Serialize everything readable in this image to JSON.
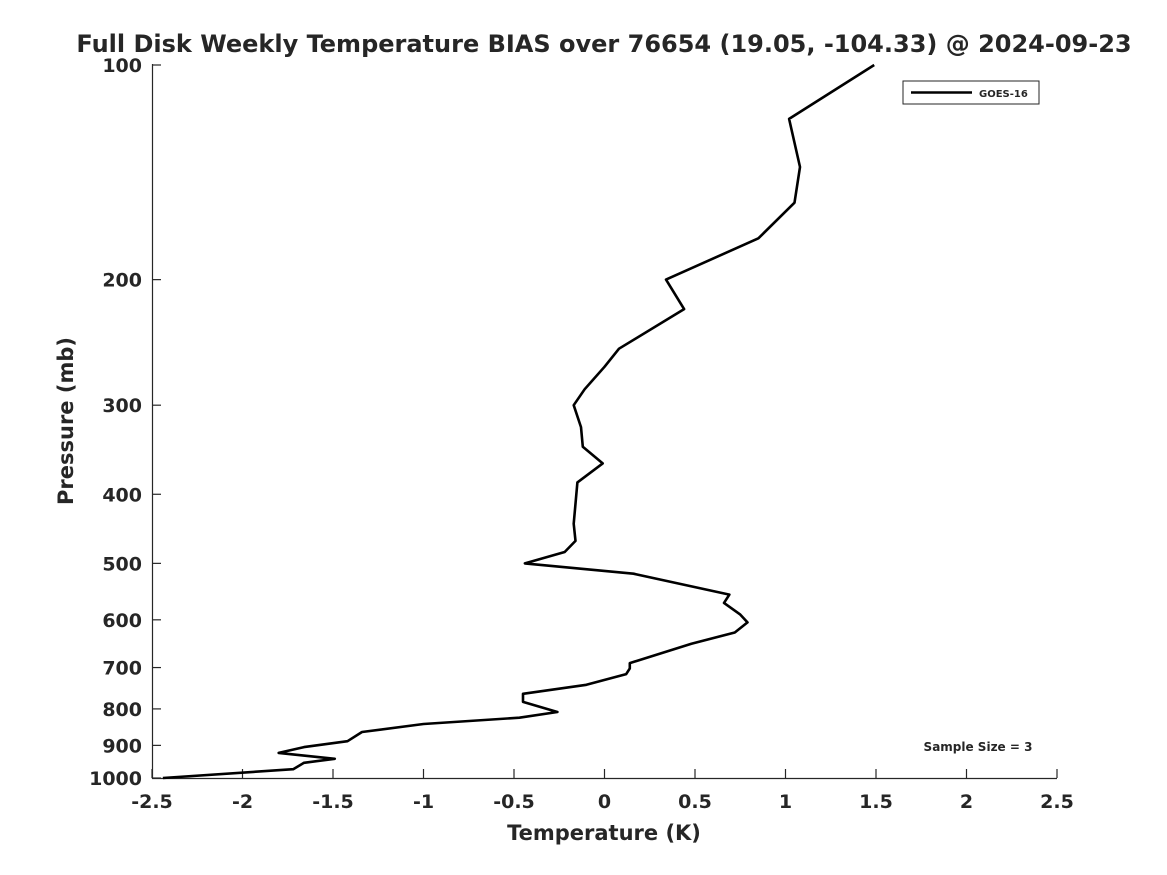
{
  "chart_data": {
    "type": "line",
    "title": "Full Disk Weekly Temperature BIAS over 76654 (19.05, -104.33) @ 2024-09-23",
    "xlabel": "Temperature (K)",
    "ylabel": "Pressure (mb)",
    "xlim": [
      -2.5,
      2.5
    ],
    "ylim": [
      100,
      1000
    ],
    "y_scale": "log",
    "y_reversed": true,
    "x_ticks": [
      "-2.5",
      "-2",
      "-1.5",
      "-1",
      "-0.5",
      "0",
      "0.5",
      "1",
      "1.5",
      "2",
      "2.5"
    ],
    "y_ticks": [
      "100",
      "200",
      "300",
      "400",
      "500",
      "600",
      "700",
      "800",
      "900",
      "1000"
    ],
    "grid": false,
    "legend_position": "top-right",
    "annotation": "Sample Size = 3",
    "series": [
      {
        "name": "GOES-16",
        "color": "#000000",
        "points": [
          {
            "x": 1.49,
            "y": 100
          },
          {
            "x": 1.02,
            "y": 119
          },
          {
            "x": 1.08,
            "y": 139
          },
          {
            "x": 1.05,
            "y": 156
          },
          {
            "x": 0.85,
            "y": 175
          },
          {
            "x": 0.34,
            "y": 200
          },
          {
            "x": 0.44,
            "y": 220
          },
          {
            "x": 0.08,
            "y": 250
          },
          {
            "x": 0.0,
            "y": 265
          },
          {
            "x": -0.11,
            "y": 285
          },
          {
            "x": -0.17,
            "y": 300
          },
          {
            "x": -0.13,
            "y": 322
          },
          {
            "x": -0.12,
            "y": 343
          },
          {
            "x": -0.01,
            "y": 362
          },
          {
            "x": -0.15,
            "y": 385
          },
          {
            "x": -0.17,
            "y": 440
          },
          {
            "x": -0.16,
            "y": 465
          },
          {
            "x": -0.22,
            "y": 482
          },
          {
            "x": -0.44,
            "y": 500
          },
          {
            "x": 0.16,
            "y": 517
          },
          {
            "x": 0.69,
            "y": 553
          },
          {
            "x": 0.66,
            "y": 568
          },
          {
            "x": 0.75,
            "y": 590
          },
          {
            "x": 0.79,
            "y": 605
          },
          {
            "x": 0.72,
            "y": 625
          },
          {
            "x": 0.48,
            "y": 648
          },
          {
            "x": 0.14,
            "y": 690
          },
          {
            "x": 0.14,
            "y": 702
          },
          {
            "x": 0.12,
            "y": 715
          },
          {
            "x": -0.1,
            "y": 740
          },
          {
            "x": -0.45,
            "y": 762
          },
          {
            "x": -0.45,
            "y": 782
          },
          {
            "x": -0.26,
            "y": 808
          },
          {
            "x": -0.47,
            "y": 823
          },
          {
            "x": -1.0,
            "y": 840
          },
          {
            "x": -1.34,
            "y": 862
          },
          {
            "x": -1.42,
            "y": 888
          },
          {
            "x": -1.66,
            "y": 905
          },
          {
            "x": -1.8,
            "y": 922
          },
          {
            "x": -1.49,
            "y": 940
          },
          {
            "x": -1.66,
            "y": 952
          },
          {
            "x": -1.72,
            "y": 972
          },
          {
            "x": -2.44,
            "y": 1000
          }
        ]
      }
    ]
  }
}
